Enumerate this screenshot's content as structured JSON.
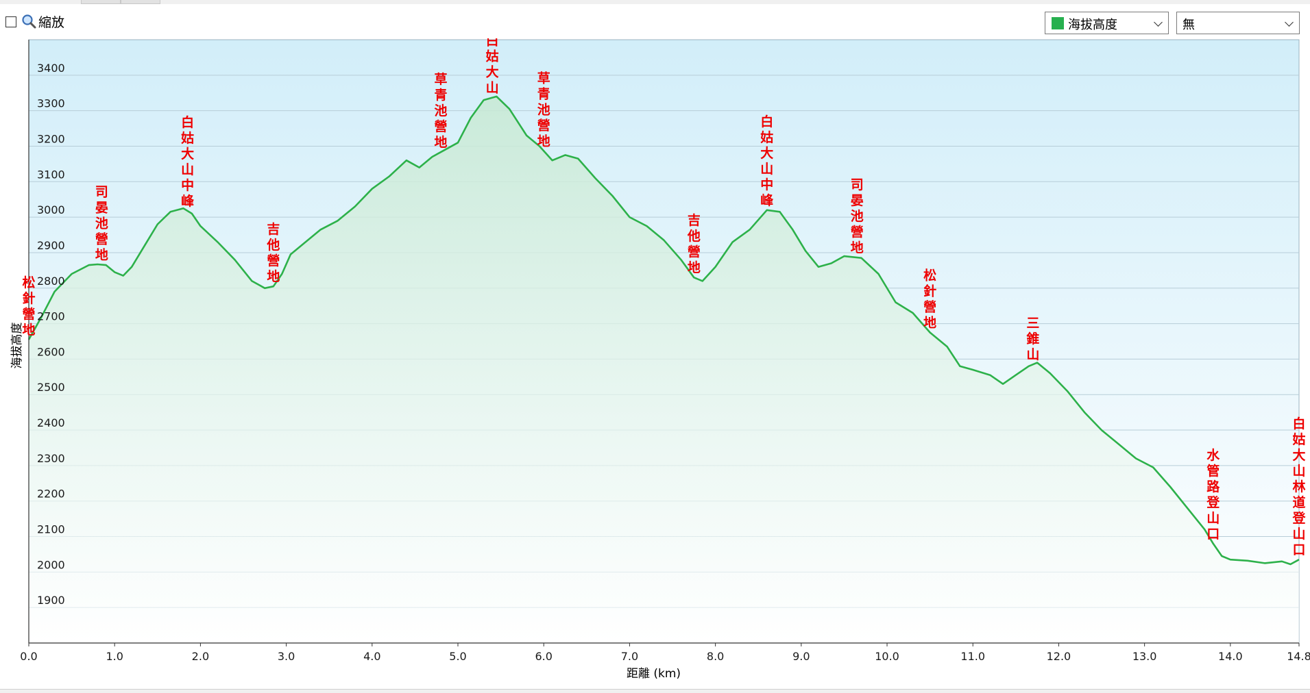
{
  "toolbar": {
    "zoom_label": "縮放",
    "series_select": {
      "value": "海拔高度",
      "swatch_color": "#27b04f"
    },
    "compare_select": {
      "value": "無"
    },
    "checkbox_checked": false,
    "icons": [
      "magnifier-icon",
      "chevron-down-icon"
    ]
  },
  "colors": {
    "line": "#2db14a",
    "label": "#ee0000",
    "plot_top": "#d2eef9",
    "plot_bottom": "#ffffff"
  },
  "chart_data": {
    "type": "area",
    "title": "",
    "xlabel": "距離 (km)",
    "ylabel": "海拔高度",
    "xlim": [
      0,
      14.8
    ],
    "ylim": [
      1800,
      3500
    ],
    "grid": true,
    "x_ticks": [
      "0.0",
      "1.0",
      "2.0",
      "3.0",
      "4.0",
      "5.0",
      "6.0",
      "7.0",
      "8.0",
      "9.0",
      "10.0",
      "11.0",
      "12.0",
      "13.0",
      "14.0",
      "14.8"
    ],
    "y_ticks": [
      "1900",
      "2000",
      "2100",
      "2200",
      "2300",
      "2400",
      "2500",
      "2600",
      "2700",
      "2800",
      "2900",
      "3000",
      "3100",
      "3200",
      "3300",
      "3400"
    ],
    "series": [
      {
        "x": [
          0,
          0.15,
          0.3,
          0.5,
          0.7,
          0.8,
          0.9,
          1.0,
          1.1,
          1.2,
          1.35,
          1.5,
          1.65,
          1.8,
          1.9,
          2.0,
          2.2,
          2.4,
          2.6,
          2.75,
          2.85,
          2.95,
          3.05,
          3.2,
          3.4,
          3.6,
          3.8,
          4.0,
          4.2,
          4.4,
          4.55,
          4.7,
          4.85,
          5.0,
          5.15,
          5.3,
          5.45,
          5.6,
          5.8,
          5.95,
          6.1,
          6.25,
          6.4,
          6.6,
          6.8,
          7.0,
          7.2,
          7.4,
          7.6,
          7.75,
          7.85,
          8.0,
          8.2,
          8.4,
          8.6,
          8.75,
          8.9,
          9.05,
          9.2,
          9.35,
          9.5,
          9.7,
          9.9,
          10.1,
          10.3,
          10.5,
          10.7,
          10.85,
          11.0,
          11.2,
          11.35,
          11.5,
          11.65,
          11.75,
          11.9,
          12.1,
          12.3,
          12.5,
          12.7,
          12.9,
          13.1,
          13.3,
          13.5,
          13.7,
          13.8,
          13.9,
          14.0,
          14.2,
          14.4,
          14.6,
          14.7,
          14.8
        ],
        "y": [
          2655,
          2720,
          2790,
          2840,
          2865,
          2867,
          2865,
          2845,
          2835,
          2860,
          2920,
          2980,
          3015,
          3025,
          3010,
          2975,
          2930,
          2880,
          2820,
          2800,
          2805,
          2840,
          2895,
          2925,
          2965,
          2990,
          3030,
          3080,
          3115,
          3160,
          3140,
          3170,
          3190,
          3210,
          3280,
          3330,
          3340,
          3305,
          3230,
          3200,
          3160,
          3175,
          3165,
          3110,
          3060,
          3000,
          2975,
          2935,
          2880,
          2830,
          2820,
          2860,
          2930,
          2965,
          3020,
          3015,
          2965,
          2905,
          2860,
          2870,
          2890,
          2885,
          2840,
          2760,
          2730,
          2675,
          2635,
          2580,
          2570,
          2555,
          2530,
          2555,
          2580,
          2590,
          2560,
          2510,
          2450,
          2400,
          2360,
          2320,
          2295,
          2240,
          2180,
          2120,
          2080,
          2045,
          2035,
          2032,
          2025,
          2030,
          2022,
          2035
        ]
      }
    ],
    "annotations": [
      {
        "text": "松針營地",
        "x": 0.0
      },
      {
        "text": "司晏池營地",
        "x": 0.85
      },
      {
        "text": "白姑大山中峰",
        "x": 1.85
      },
      {
        "text": "吉他營地",
        "x": 2.85
      },
      {
        "text": "草青池營地",
        "x": 4.8
      },
      {
        "text": "白姑大山",
        "x": 5.4
      },
      {
        "text": "草青池營地",
        "x": 6.0
      },
      {
        "text": "吉他營地",
        "x": 7.75
      },
      {
        "text": "白姑大山中峰",
        "x": 8.6
      },
      {
        "text": "司晏池營地",
        "x": 9.65
      },
      {
        "text": "松針營地",
        "x": 10.5
      },
      {
        "text": "三錐山",
        "x": 11.7
      },
      {
        "text": "水管路登山口",
        "x": 13.8
      },
      {
        "text": "白姑大山林道登山口",
        "x": 14.8
      }
    ]
  }
}
